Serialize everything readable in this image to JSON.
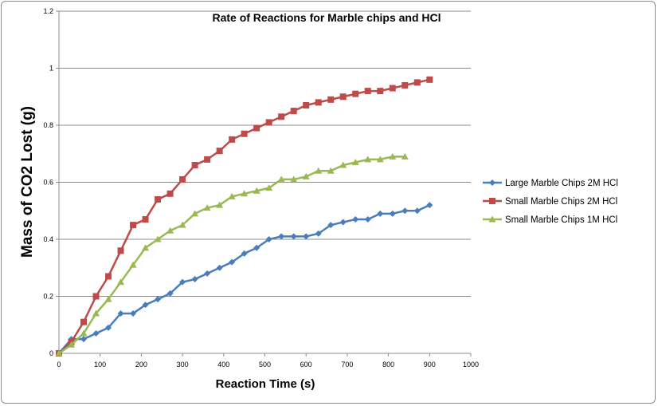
{
  "chart_data": {
    "type": "line",
    "title": "Rate of Reactions for Marble chips and HCl",
    "xlabel": "Reaction Time (s)",
    "ylabel": "Mass of CO2 Lost (g)",
    "xlim": [
      0,
      1000
    ],
    "ylim": [
      0,
      1.2
    ],
    "xticks": [
      0,
      100,
      200,
      300,
      400,
      500,
      600,
      700,
      800,
      900,
      1000
    ],
    "yticks": [
      0,
      0.2,
      0.4,
      0.6,
      0.8,
      1,
      1.2
    ],
    "ytick_labels": [
      "0",
      "0.2",
      "0.4",
      "0.6",
      "0.8",
      "1",
      "1.2"
    ],
    "grid": "horizontal",
    "legend_position": "right",
    "series": [
      {
        "name": "Large Marble Chips 2M HCl",
        "color": "#4a7ebb",
        "marker": "diamond",
        "x": [
          0,
          30,
          60,
          90,
          120,
          150,
          180,
          210,
          240,
          270,
          300,
          330,
          360,
          390,
          420,
          450,
          480,
          510,
          540,
          570,
          600,
          630,
          660,
          690,
          720,
          750,
          780,
          810,
          840,
          870,
          900
        ],
        "values": [
          0,
          0.05,
          0.05,
          0.07,
          0.09,
          0.14,
          0.14,
          0.17,
          0.19,
          0.21,
          0.25,
          0.26,
          0.28,
          0.3,
          0.32,
          0.35,
          0.37,
          0.4,
          0.41,
          0.41,
          0.41,
          0.42,
          0.45,
          0.46,
          0.47,
          0.47,
          0.49,
          0.49,
          0.5,
          0.5,
          0.52
        ]
      },
      {
        "name": "Small Marble Chips 2M HCl",
        "color": "#be4b48",
        "marker": "square",
        "x": [
          0,
          30,
          60,
          90,
          120,
          150,
          180,
          210,
          240,
          270,
          300,
          330,
          360,
          390,
          420,
          450,
          480,
          510,
          540,
          570,
          600,
          630,
          660,
          690,
          720,
          750,
          780,
          810,
          840,
          870,
          900
        ],
        "values": [
          0,
          0.04,
          0.11,
          0.2,
          0.27,
          0.36,
          0.45,
          0.47,
          0.54,
          0.56,
          0.61,
          0.66,
          0.68,
          0.71,
          0.75,
          0.77,
          0.79,
          0.81,
          0.83,
          0.85,
          0.87,
          0.88,
          0.89,
          0.9,
          0.91,
          0.92,
          0.92,
          0.93,
          0.94,
          0.95,
          0.96
        ]
      },
      {
        "name": "Small Marble Chips 1M HCl",
        "color": "#98b954",
        "marker": "triangle",
        "x": [
          0,
          30,
          60,
          90,
          120,
          150,
          180,
          210,
          240,
          270,
          300,
          330,
          360,
          390,
          420,
          450,
          480,
          510,
          540,
          570,
          600,
          630,
          660,
          690,
          720,
          750,
          780,
          810,
          840
        ],
        "values": [
          0,
          0.03,
          0.07,
          0.14,
          0.19,
          0.25,
          0.31,
          0.37,
          0.4,
          0.43,
          0.45,
          0.49,
          0.51,
          0.52,
          0.55,
          0.56,
          0.57,
          0.58,
          0.61,
          0.61,
          0.62,
          0.64,
          0.64,
          0.66,
          0.67,
          0.68,
          0.68,
          0.69,
          0.69
        ]
      }
    ]
  }
}
